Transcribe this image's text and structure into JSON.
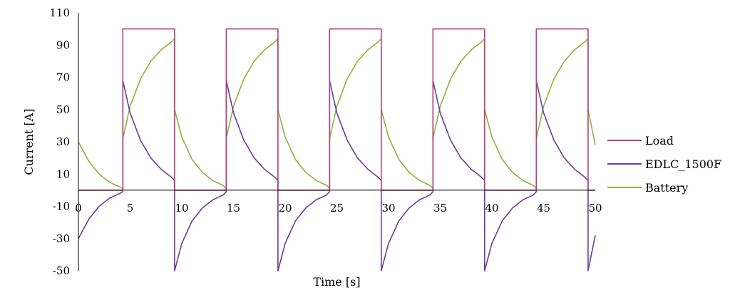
{
  "chart_data": {
    "type": "line",
    "xlabel": "Time [s]",
    "ylabel": "Current [A]",
    "xlim": [
      0,
      50
    ],
    "ylim": [
      -50,
      110
    ],
    "x_ticks": [
      "0",
      "5",
      "10",
      "15",
      "20",
      "25",
      "30",
      "35",
      "40",
      "45",
      "50"
    ],
    "y_ticks": [
      "110",
      "90",
      "70",
      "50",
      "30",
      "10",
      "-10",
      "-30",
      "-50"
    ],
    "grid": false,
    "legend_position": "right",
    "period_s": 10,
    "pulse_on_s": [
      4.3,
      9.3
    ],
    "series": [
      {
        "name": "Load",
        "color": "#b5407a",
        "x": [
          0,
          4.3,
          4.3,
          9.3,
          9.3,
          14.3,
          14.3,
          19.3,
          19.3,
          24.3,
          24.3,
          29.3,
          29.3,
          34.3,
          34.3,
          39.3,
          39.3,
          44.3,
          44.3,
          49.3,
          49.3,
          50
        ],
        "y": [
          0,
          0,
          100,
          100,
          0,
          0,
          100,
          100,
          0,
          0,
          100,
          100,
          0,
          0,
          100,
          100,
          0,
          0,
          100,
          100,
          0,
          0
        ]
      },
      {
        "name": "EDLC_1500F",
        "color": "#6a3d9a",
        "x": [
          0,
          1,
          2,
          3,
          4,
          4.3,
          4.3,
          5,
          6,
          7,
          8,
          9,
          9.3,
          9.3,
          10,
          11,
          12,
          13,
          14,
          14.3,
          14.3,
          15,
          16,
          17,
          18,
          19,
          19.3,
          19.3,
          20,
          21,
          22,
          23,
          24,
          24.3,
          24.3,
          25,
          26,
          27,
          28,
          29,
          29.3,
          29.3,
          30,
          31,
          32,
          33,
          34,
          34.3,
          34.3,
          35,
          36,
          37,
          38,
          39,
          39.3,
          39.3,
          40,
          41,
          42,
          43,
          44,
          44.3,
          44.3,
          45,
          46,
          47,
          48,
          49,
          49.3,
          49.3,
          50
        ],
        "y": [
          -30,
          -18,
          -10,
          -5,
          -2,
          -1,
          68,
          48,
          31,
          20,
          13,
          8,
          6,
          -50,
          -33,
          -19,
          -11,
          -6,
          -3,
          -1,
          68,
          48,
          31,
          20,
          13,
          8,
          6,
          -50,
          -33,
          -19,
          -11,
          -6,
          -3,
          -1,
          68,
          48,
          31,
          20,
          13,
          8,
          6,
          -50,
          -33,
          -19,
          -11,
          -6,
          -3,
          -1,
          68,
          48,
          31,
          20,
          13,
          8,
          6,
          -50,
          -33,
          -19,
          -11,
          -6,
          -3,
          -1,
          68,
          48,
          31,
          20,
          13,
          8,
          6,
          -50,
          -28
        ]
      },
      {
        "name": "Battery",
        "color": "#8db33a",
        "x": [
          0,
          1,
          2,
          3,
          4,
          4.3,
          4.3,
          5,
          6,
          7,
          8,
          9,
          9.3,
          9.3,
          10,
          11,
          12,
          13,
          14,
          14.3,
          14.3,
          15,
          16,
          17,
          18,
          19,
          19.3,
          19.3,
          20,
          21,
          22,
          23,
          24,
          24.3,
          24.3,
          25,
          26,
          27,
          28,
          29,
          29.3,
          29.3,
          30,
          31,
          32,
          33,
          34,
          34.3,
          34.3,
          35,
          36,
          37,
          38,
          39,
          39.3,
          39.3,
          40,
          41,
          42,
          43,
          44,
          44.3,
          44.3,
          45,
          46,
          47,
          48,
          49,
          49.3,
          49.3,
          50
        ],
        "y": [
          30,
          18,
          10,
          5,
          2,
          1,
          32,
          52,
          69,
          80,
          87,
          92,
          94,
          50,
          33,
          19,
          11,
          6,
          3,
          1,
          32,
          52,
          69,
          80,
          87,
          92,
          94,
          50,
          33,
          19,
          11,
          6,
          3,
          1,
          32,
          52,
          69,
          80,
          87,
          92,
          94,
          50,
          33,
          19,
          11,
          6,
          3,
          1,
          32,
          52,
          69,
          80,
          87,
          92,
          94,
          50,
          33,
          19,
          11,
          6,
          3,
          1,
          32,
          52,
          69,
          80,
          87,
          92,
          94,
          50,
          28
        ]
      }
    ]
  }
}
